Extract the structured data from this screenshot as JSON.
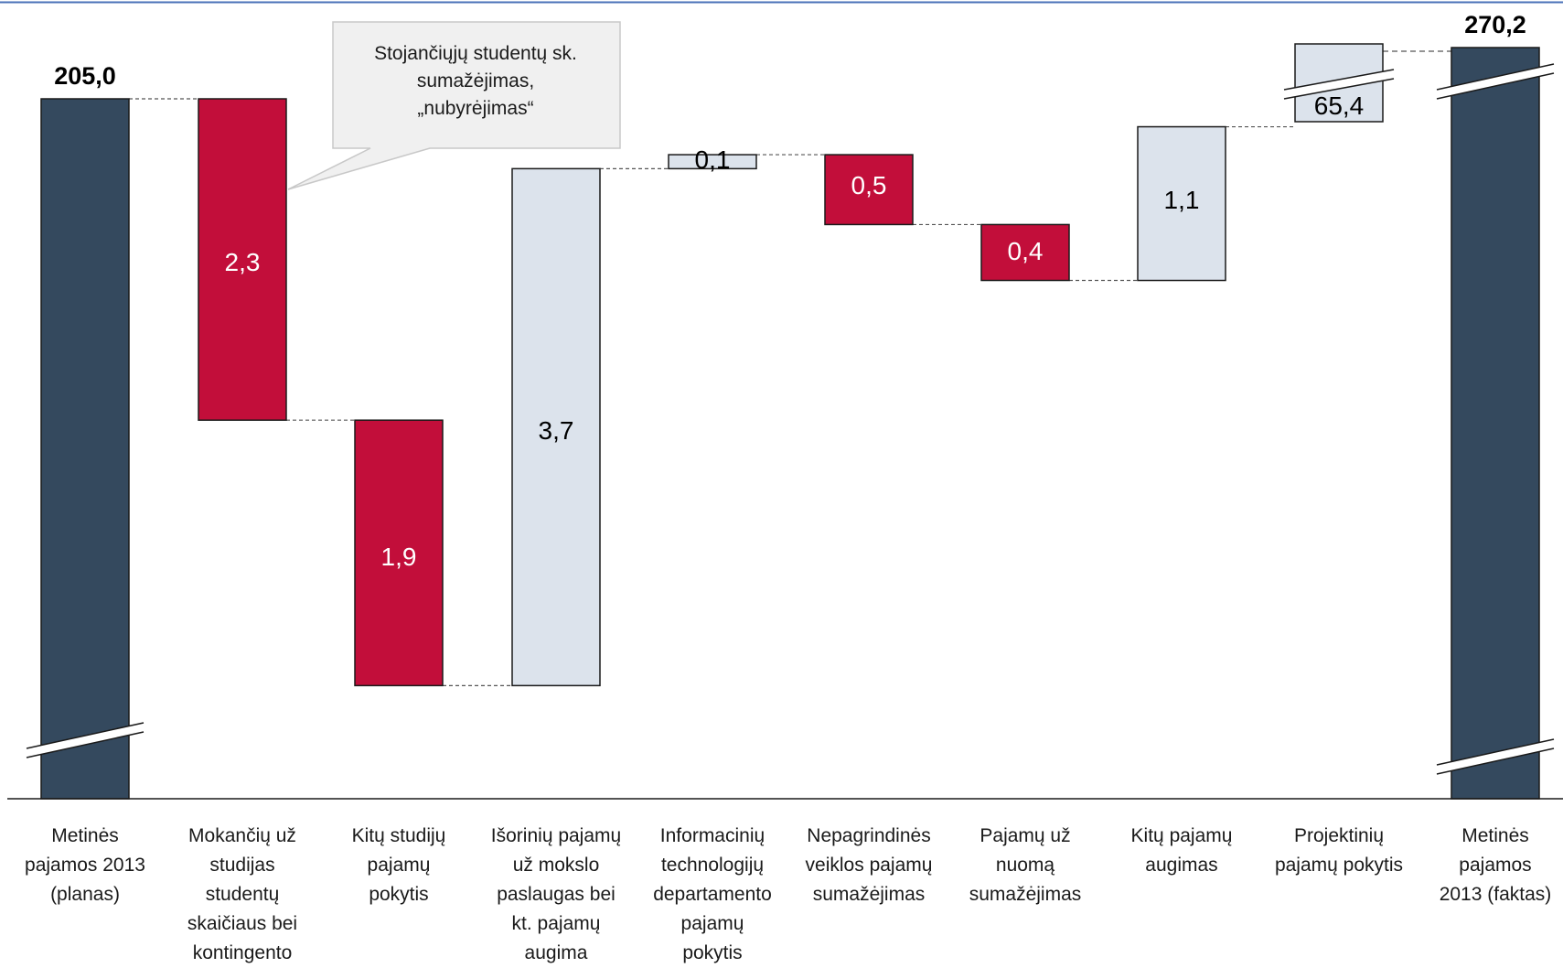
{
  "chart_data": {
    "type": "waterfall",
    "categories": [
      "Metinės\npajamos 2013\n(planas)",
      "Mokančių už\nstudijas\nstudentų\nskaičiaus bei\nkontingento",
      "Kitų studijų\npajamų\npokytis",
      "Išorinių pajamų\nuž mokslo\npaslaugas bei\nkt. pajamų\naugima",
      "Informacinių\ntechnologijų\ndepartamento\npajamų\npokytis",
      "Nepagrindinės\nveiklos pajamų\nsumažėjimas",
      "Pajamų už\nnuomą\nsumažėjimas",
      "Kitų  pajamų\naugimas",
      "Projektinių\npajamų pokytis",
      "Metinės\npajamos\n2013 (faktas)"
    ],
    "values": [
      205.0,
      -2.3,
      -1.9,
      3.7,
      0.1,
      -0.5,
      -0.4,
      1.1,
      65.4,
      270.2
    ],
    "value_labels": [
      "205,0",
      "2,3",
      "1,9",
      "3,7",
      "0,1",
      "0,5",
      "0,4",
      "1,1",
      "65,4",
      "270,2"
    ],
    "kinds": [
      "total",
      "decrease",
      "decrease",
      "increase",
      "increase",
      "decrease",
      "decrease",
      "increase",
      "increase",
      "total"
    ],
    "y_axis_broken": true,
    "grid": false,
    "colors": {
      "total": "#34495e",
      "decrease": "#c20e3a",
      "increase": "#dce3ec",
      "edge": "#1a1a1a",
      "connector": "#555555",
      "top_rule": "#4a72b8",
      "callout_fill": "#f0f0f0",
      "callout_border": "#c8c8c8"
    }
  },
  "callout": {
    "text": "Stojančiųjų studentų sk.\nsumažėjimas,\n„nubyrėjimas“",
    "target_category": 1
  }
}
